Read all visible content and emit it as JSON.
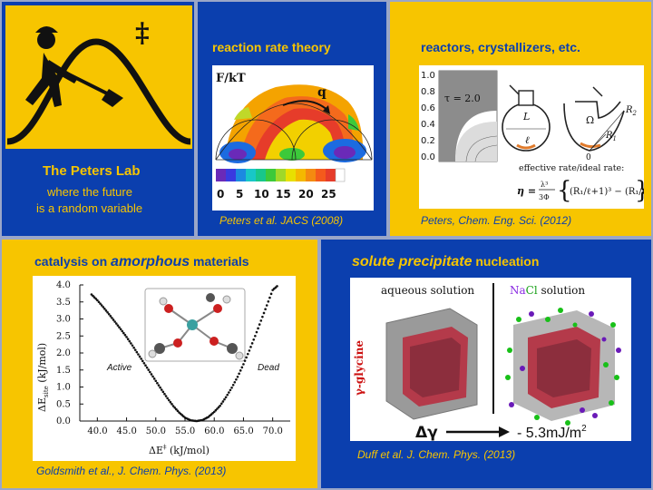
{
  "lab": {
    "title": "The Peters Lab",
    "tagline_1": "where the future",
    "tagline_2": "is a random variable",
    "logo_symbol": "‡"
  },
  "panels": {
    "reaction_rate": {
      "title": "reaction rate theory",
      "plot_label": "F/kT",
      "q_label": "q",
      "colorbar_ticks": [
        "0",
        "5",
        "10",
        "15",
        "20",
        "25"
      ],
      "citation": "Peters et al. JACS  (2008)"
    },
    "reactors": {
      "title": "reactors, crystallizers, etc.",
      "axis_ticks": [
        "1.0",
        "0.8",
        "0.6",
        "0.4",
        "0.2",
        "0.0"
      ],
      "tau_label": "τ = 2.0",
      "flask_L": "L",
      "flask_l": "ℓ",
      "omega": "Ω",
      "r2": "R",
      "r2_sub": "2",
      "r1": "R",
      "r1_sub": "1",
      "zero": "0",
      "formula_caption": "effective rate/ideal rate:",
      "citation": "Peters, Chem. Eng. Sci. (2012)"
    },
    "catalysis": {
      "title_pre": "catalysis on ",
      "title_em": "amorphous",
      "title_post": " materials",
      "active_label": "Active",
      "dead_label": "Dead",
      "ylabel": "ΔE",
      "ylabel_sub": "site",
      "ylabel_unit": " (kJ/mol)",
      "xlabel": "ΔE",
      "xlabel_sup": "‡",
      "xlabel_unit": " (kJ/mol)",
      "citation": "Goldsmith et al., J. Chem. Phys. (2013)"
    },
    "nucleation": {
      "title_em": "solute precipitate",
      "title_post": " nucleation",
      "aqueous_label": "aqueous solution",
      "nacl_na": "Na",
      "nacl_cl": "Cl",
      "nacl_rest": " solution",
      "glycine_label": "γ-glycine",
      "delta_gamma": "Δγ",
      "value_label": "- 5.3mJ/m",
      "value_sup": "2",
      "citation": "Duff et al. J. Chem. Phys. (2013)"
    }
  },
  "colors": {
    "yellow": "#f7c500",
    "blue": "#0b3fae",
    "title_yellow_text": "#0b3fae",
    "title_blue_text": "#f7c500"
  },
  "chart_data": {
    "type": "scatter",
    "title": "",
    "xlabel": "ΔE‡ (kJ/mol)",
    "ylabel": "ΔEsite (kJ/mol)",
    "xlim": [
      37,
      73
    ],
    "ylim": [
      0,
      4.0
    ],
    "x_ticks": [
      "40.0",
      "45.0",
      "50.0",
      "55.0",
      "60.0",
      "65.0",
      "70.0"
    ],
    "y_ticks": [
      "4.0",
      "3.5",
      "3.0",
      "2.5",
      "2.0",
      "1.5",
      "1.0",
      "0.5",
      "0.0"
    ],
    "series": [
      {
        "x": [
          39,
          40,
          41,
          42,
          43,
          44,
          45,
          46,
          47,
          48,
          49,
          50,
          51,
          52,
          53,
          54,
          55,
          56,
          57,
          58,
          59,
          60,
          61,
          62,
          63,
          64,
          65,
          66,
          67,
          68,
          69,
          70,
          71
        ],
        "y": [
          3.72,
          3.55,
          3.35,
          3.14,
          2.92,
          2.7,
          2.47,
          2.22,
          1.96,
          1.7,
          1.44,
          1.18,
          0.92,
          0.67,
          0.44,
          0.25,
          0.1,
          0.02,
          0.0,
          0.03,
          0.12,
          0.27,
          0.45,
          0.7,
          0.98,
          1.3,
          1.67,
          2.07,
          2.5,
          2.95,
          3.4,
          3.85,
          4.0
        ]
      }
    ]
  }
}
